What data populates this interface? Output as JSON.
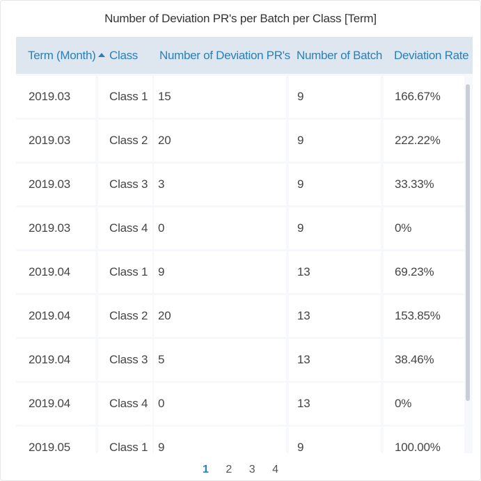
{
  "title": "Number of Deviation PR's per Batch per Class [Term]",
  "columns": {
    "term": "Term (Month)",
    "class": "Class",
    "deviation_prs": "Number of Deviation PR's",
    "batch": "Number of Batch",
    "rate": "Deviation Rate"
  },
  "sort": {
    "column": "term",
    "direction": "ascending",
    "icon": "sort-up-icon"
  },
  "rows": [
    {
      "term": "2019.03",
      "class": "Class 1",
      "prs": "15",
      "batch": "9",
      "rate": "166.67%"
    },
    {
      "term": "2019.03",
      "class": "Class 2",
      "prs": "20",
      "batch": "9",
      "rate": "222.22%"
    },
    {
      "term": "2019.03",
      "class": "Class 3",
      "prs": "3",
      "batch": "9",
      "rate": "33.33%"
    },
    {
      "term": "2019.03",
      "class": "Class 4",
      "prs": "0",
      "batch": "9",
      "rate": "0%"
    },
    {
      "term": "2019.04",
      "class": "Class 1",
      "prs": "9",
      "batch": "13",
      "rate": "69.23%"
    },
    {
      "term": "2019.04",
      "class": "Class 2",
      "prs": "20",
      "batch": "13",
      "rate": "153.85%"
    },
    {
      "term": "2019.04",
      "class": "Class 3",
      "prs": "5",
      "batch": "13",
      "rate": "38.46%"
    },
    {
      "term": "2019.04",
      "class": "Class 4",
      "prs": "0",
      "batch": "13",
      "rate": "0%"
    },
    {
      "term": "2019.05",
      "class": "Class 1",
      "prs": "9",
      "batch": "9",
      "rate": "100.00%"
    }
  ],
  "pagination": {
    "pages": [
      "1",
      "2",
      "3",
      "4"
    ],
    "current": "1"
  },
  "colors": {
    "accent": "#2a7fb8",
    "header_bg": "#dee6f0",
    "text": "#444444"
  }
}
